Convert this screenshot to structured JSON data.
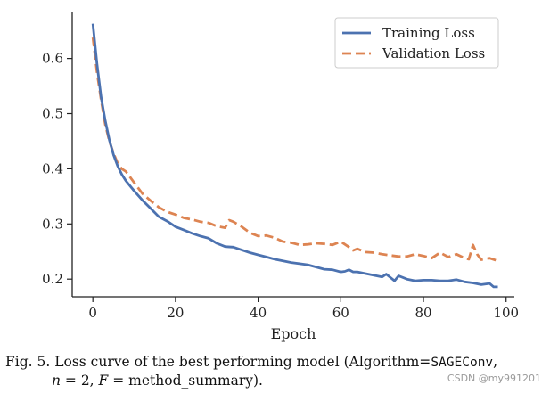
{
  "chart_data": {
    "type": "line",
    "title": "",
    "xlabel": "Epoch",
    "ylabel": "",
    "xlim": [
      -5,
      102
    ],
    "ylim": [
      0.168,
      0.685
    ],
    "xticks": [
      0,
      20,
      40,
      60,
      80,
      100
    ],
    "yticks": [
      0.2,
      0.3,
      0.4,
      0.5,
      0.6
    ],
    "xtick_labels": [
      "0",
      "20",
      "40",
      "60",
      "80",
      "100"
    ],
    "ytick_labels": [
      "0.2",
      "0.3",
      "0.4",
      "0.5",
      "0.6"
    ],
    "grid": false,
    "legend_position": "top-right",
    "series": [
      {
        "name": "Training Loss",
        "color": "#4c72b0",
        "style": "solid",
        "x": [
          0,
          1,
          2,
          3,
          4,
          5,
          6,
          7,
          8,
          10,
          12,
          14,
          16,
          18,
          20,
          22,
          24,
          26,
          28,
          30,
          32,
          34,
          36,
          38,
          40,
          42,
          44,
          46,
          48,
          50,
          52,
          54,
          56,
          58,
          60,
          61,
          62,
          63,
          64,
          66,
          68,
          70,
          71,
          72,
          73,
          74,
          76,
          78,
          80,
          82,
          84,
          86,
          88,
          90,
          92,
          94,
          96,
          97,
          98
        ],
        "values": [
          0.663,
          0.59,
          0.53,
          0.487,
          0.452,
          0.425,
          0.405,
          0.39,
          0.378,
          0.36,
          0.343,
          0.328,
          0.313,
          0.305,
          0.295,
          0.289,
          0.283,
          0.278,
          0.274,
          0.265,
          0.259,
          0.258,
          0.253,
          0.248,
          0.244,
          0.24,
          0.236,
          0.233,
          0.23,
          0.228,
          0.226,
          0.222,
          0.218,
          0.217,
          0.213,
          0.214,
          0.217,
          0.213,
          0.213,
          0.21,
          0.207,
          0.204,
          0.209,
          0.203,
          0.197,
          0.206,
          0.2,
          0.197,
          0.198,
          0.198,
          0.197,
          0.197,
          0.199,
          0.195,
          0.193,
          0.19,
          0.192,
          0.186,
          0.186
        ]
      },
      {
        "name": "Validation Loss",
        "color": "#dd8452",
        "style": "dashed",
        "x": [
          0,
          1,
          2,
          3,
          4,
          5,
          6,
          7,
          8,
          10,
          12,
          14,
          16,
          18,
          20,
          22,
          24,
          26,
          28,
          30,
          32,
          33,
          34,
          36,
          38,
          40,
          42,
          44,
          46,
          48,
          50,
          52,
          54,
          56,
          58,
          60,
          62,
          63,
          64,
          66,
          68,
          70,
          72,
          74,
          76,
          78,
          80,
          82,
          84,
          86,
          88,
          90,
          91,
          92,
          93,
          94,
          96,
          98
        ],
        "values": [
          0.638,
          0.575,
          0.525,
          0.48,
          0.45,
          0.428,
          0.41,
          0.4,
          0.395,
          0.375,
          0.355,
          0.342,
          0.33,
          0.322,
          0.317,
          0.311,
          0.308,
          0.304,
          0.302,
          0.296,
          0.293,
          0.307,
          0.304,
          0.295,
          0.284,
          0.278,
          0.279,
          0.275,
          0.268,
          0.266,
          0.262,
          0.263,
          0.265,
          0.264,
          0.262,
          0.268,
          0.258,
          0.252,
          0.255,
          0.249,
          0.248,
          0.245,
          0.243,
          0.241,
          0.241,
          0.245,
          0.242,
          0.238,
          0.248,
          0.24,
          0.245,
          0.238,
          0.236,
          0.262,
          0.245,
          0.235,
          0.238,
          0.233
        ]
      }
    ]
  },
  "caption": {
    "prefix": "Fig. 5. Loss curve of the best performing model (Algorithm=",
    "algorithm": "SAGEConv",
    "comma": ",",
    "n_var": "n",
    "n_eq": " = 2, ",
    "f_var": "F",
    "f_eq": " = method_summary)."
  },
  "watermark": "CSDN @my991201"
}
